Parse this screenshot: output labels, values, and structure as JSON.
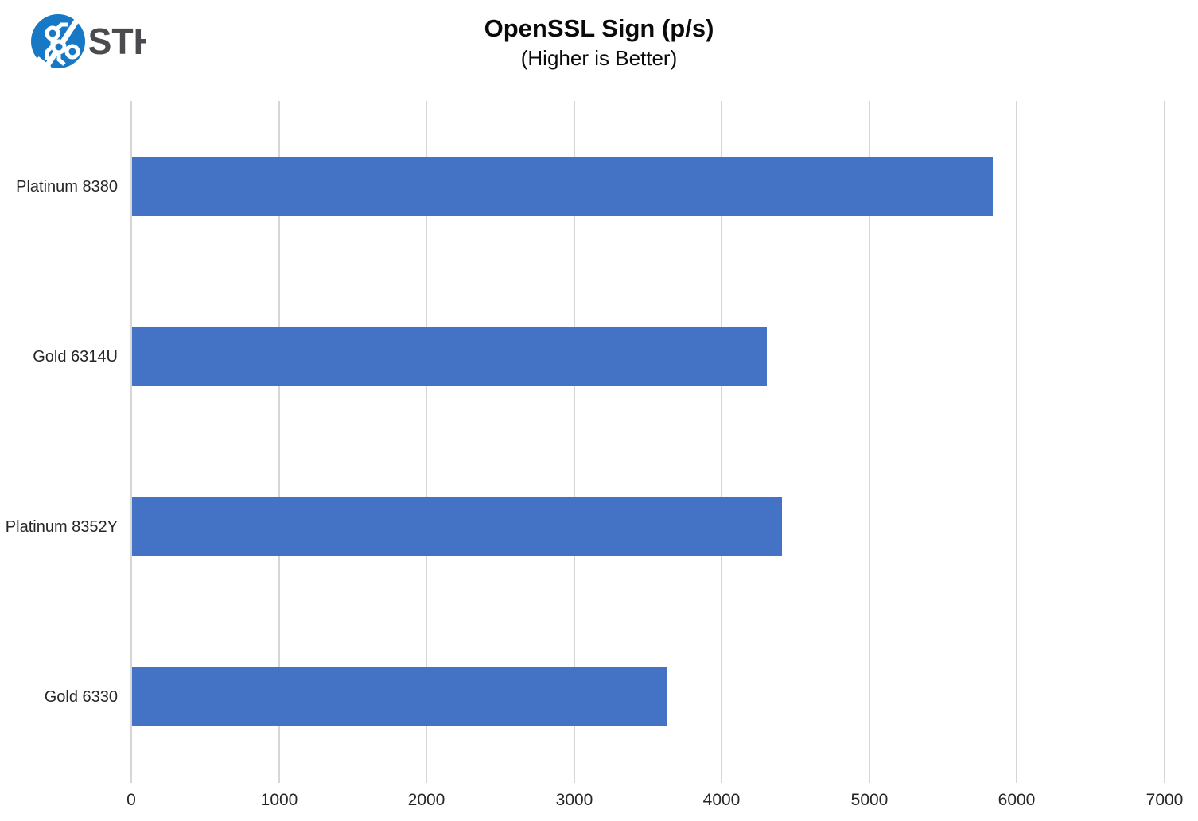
{
  "logo": {
    "brand": "STH",
    "circle_color": "#1779C5",
    "trace_color": "#ffffff",
    "text_color": "#4A4B4E"
  },
  "chart_data": {
    "type": "bar",
    "orientation": "horizontal",
    "title": "OpenSSL Sign (p/s)",
    "subtitle": "(Higher is Better)",
    "categories": [
      "Platinum 8380",
      "Gold 6314U",
      "Platinum 8352Y",
      "Gold 6330"
    ],
    "values": [
      5830,
      4300,
      4400,
      3620
    ],
    "xlim": [
      0,
      7000
    ],
    "xticks": [
      0,
      1000,
      2000,
      3000,
      4000,
      5000,
      6000,
      7000
    ],
    "xlabel": "",
    "ylabel": "",
    "grid": true,
    "legend": "none",
    "bar_color": "#4472C4",
    "gridline_color": "#D6D6D6",
    "label_color": "#262626"
  }
}
